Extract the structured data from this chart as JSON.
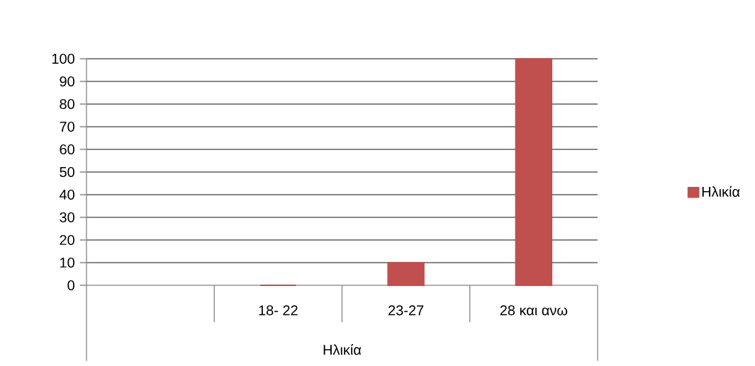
{
  "chart_data": {
    "type": "bar",
    "categories": [
      null,
      "18- 22",
      "23-27",
      "28 και ανω"
    ],
    "xlabel": "Ηλικία",
    "series": [
      {
        "name": "Ηλικία",
        "color": "#c0504d",
        "values": [
          null,
          0,
          10,
          100
        ]
      }
    ],
    "ylim": [
      0,
      100
    ],
    "yticks": [
      0,
      10,
      20,
      30,
      40,
      50,
      60,
      70,
      80,
      90,
      100
    ],
    "grid": "y",
    "legend": "right"
  }
}
